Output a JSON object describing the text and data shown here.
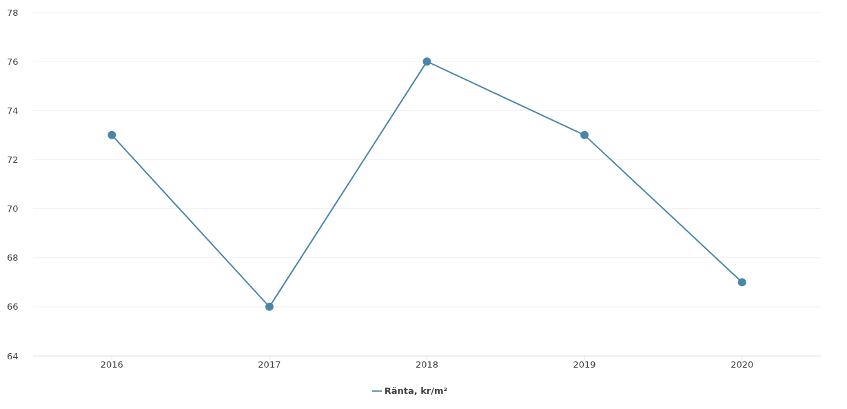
{
  "chart_data": {
    "type": "line",
    "categories": [
      "2016",
      "2017",
      "2018",
      "2019",
      "2020"
    ],
    "series": [
      {
        "name": "Ränta, kr/m²",
        "color": "#4a86a8",
        "values": [
          73,
          66,
          76,
          73,
          67
        ]
      }
    ],
    "ylim": [
      64,
      78
    ],
    "yticks": [
      64,
      66,
      68,
      70,
      72,
      74,
      76,
      78
    ],
    "grid": "y",
    "legend": "bottom",
    "marker": "circle",
    "line_style": "solid"
  }
}
